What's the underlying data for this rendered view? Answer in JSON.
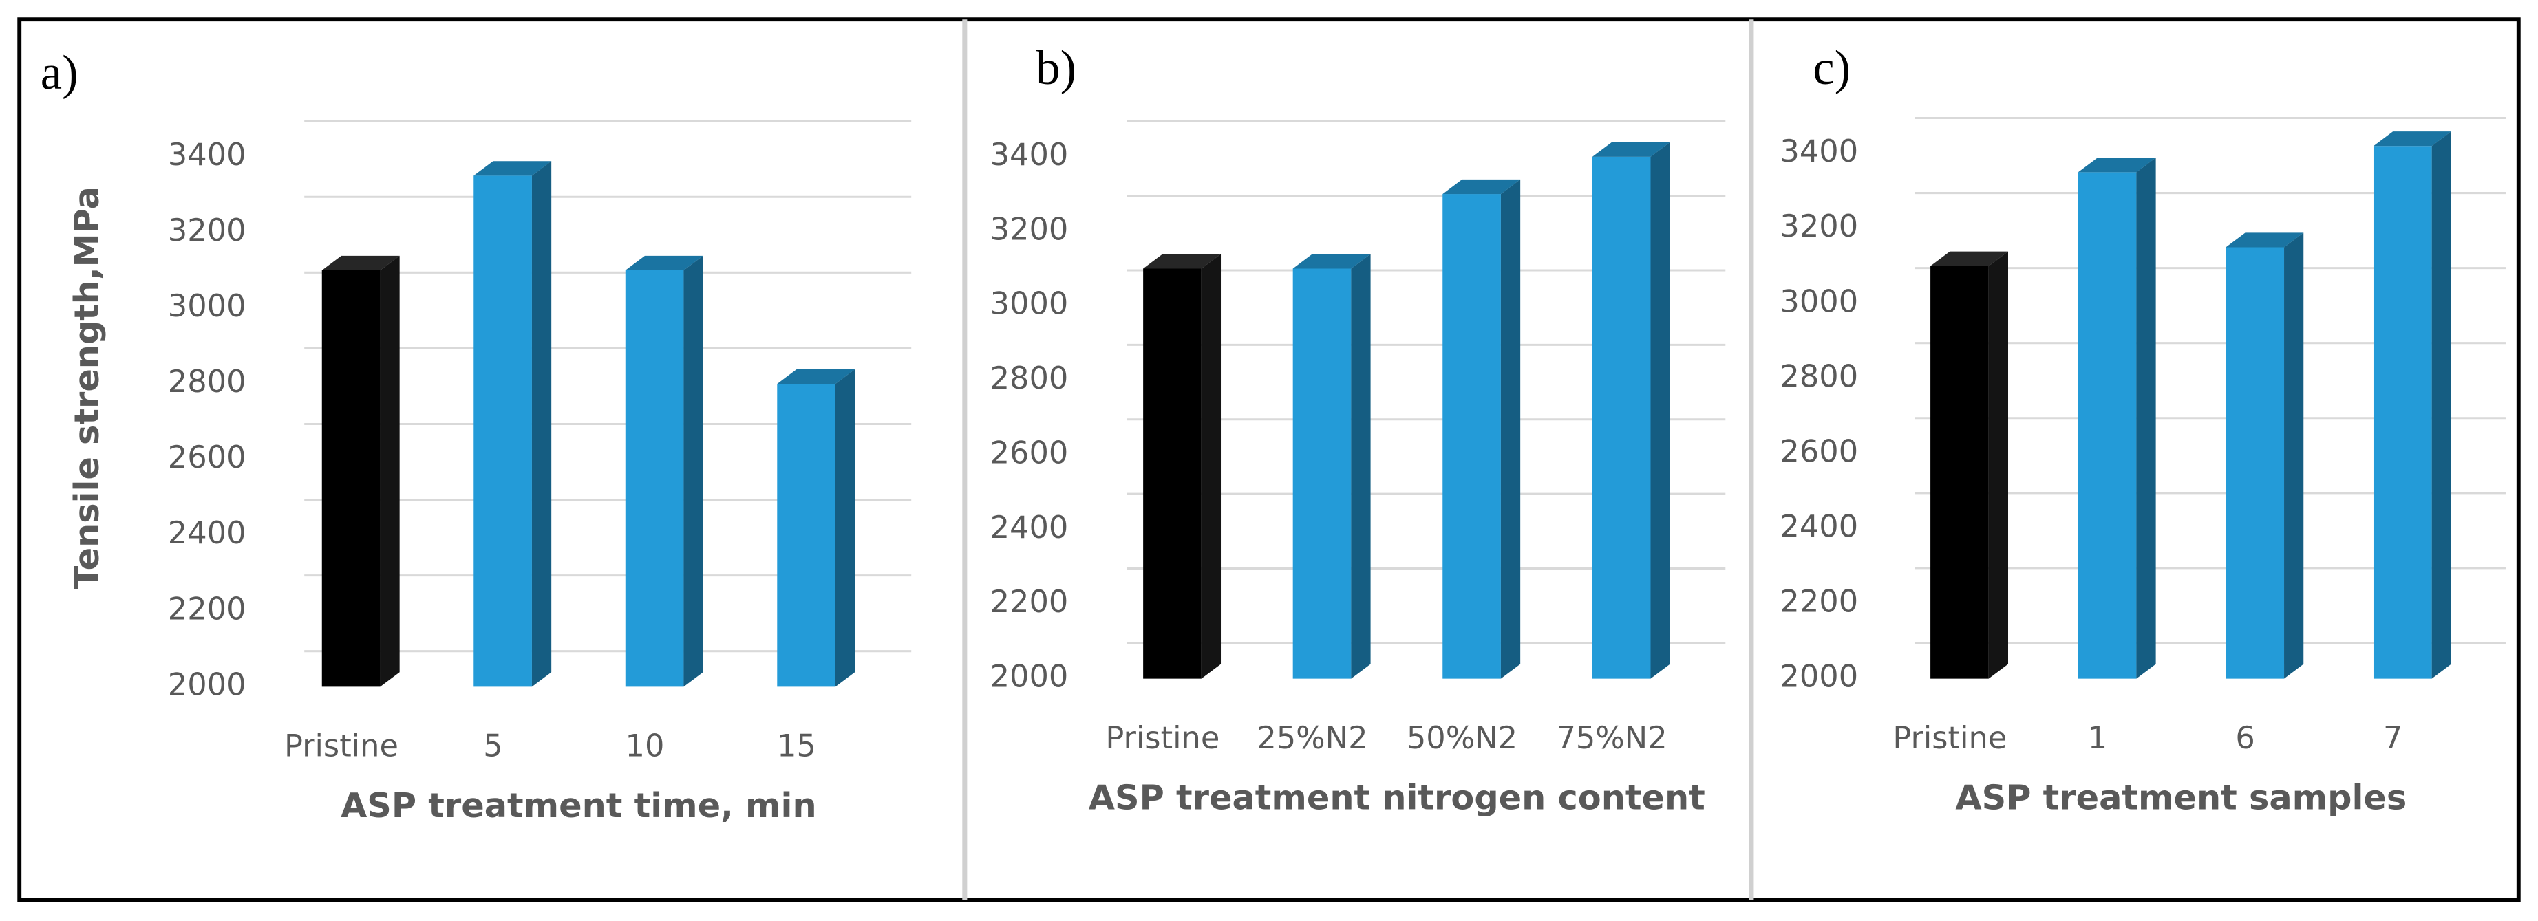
{
  "chart_data": [
    {
      "type": "bar3d",
      "title": "a)",
      "y_label": "Tensile strength,MPa",
      "x_label": "ASP treatment time, min",
      "categories": [
        "Pristine",
        "5",
        "10",
        "15"
      ],
      "values": [
        3100,
        3350,
        3100,
        2800
      ],
      "colors": [
        "#000000",
        "#239bd8",
        "#239bd8",
        "#239bd8"
      ],
      "ylim": [
        2000,
        3400
      ],
      "yticks": [
        2000,
        2200,
        2400,
        2600,
        2800,
        3000,
        3200,
        3400
      ],
      "grid": true
    },
    {
      "type": "bar3d",
      "title": "b)",
      "x_label": "ASP treatment nitrogen content",
      "categories": [
        "Pristine",
        "25%N2",
        "50%N2",
        "75%N2"
      ],
      "values": [
        3100,
        3100,
        3300,
        3400
      ],
      "colors": [
        "#000000",
        "#239bd8",
        "#239bd8",
        "#239bd8"
      ],
      "ylim": [
        2000,
        3400
      ],
      "yticks": [
        2000,
        2200,
        2400,
        2600,
        2800,
        3000,
        3200,
        3400
      ],
      "grid": true
    },
    {
      "type": "bar3d",
      "title": "c)",
      "x_label": "ASP treatment  samples",
      "categories": [
        "Pristine",
        "1",
        "6",
        "7"
      ],
      "values": [
        3100,
        3350,
        3150,
        3420
      ],
      "colors": [
        "#000000",
        "#239bd8",
        "#239bd8",
        "#239bd8"
      ],
      "ylim": [
        2000,
        3400
      ],
      "yticks": [
        2000,
        2200,
        2400,
        2600,
        2800,
        3000,
        3200,
        3400
      ],
      "grid": true
    }
  ]
}
